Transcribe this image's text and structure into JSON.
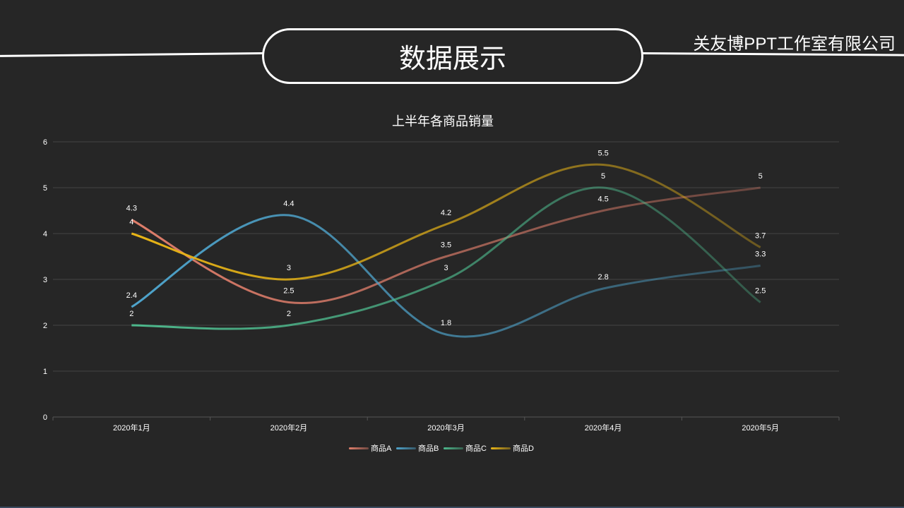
{
  "header": {
    "title": "数据展示",
    "company": "关友博PPT工作室有限公司"
  },
  "chart_data": {
    "type": "line",
    "title": "上半年各商品销量",
    "categories": [
      "2020年1月",
      "2020年2月",
      "2020年3月",
      "2020年4月",
      "2020年5月"
    ],
    "ylim": [
      0,
      6
    ],
    "yticks": [
      0,
      1,
      2,
      3,
      4,
      5,
      6
    ],
    "grid": true,
    "smooth": true,
    "legend_position": "bottom-center",
    "series": [
      {
        "name": "商品A",
        "color": "#e07e6b",
        "values": [
          4.3,
          2.5,
          3.5,
          4.5,
          5
        ]
      },
      {
        "name": "商品B",
        "color": "#4ea4cc",
        "values": [
          2.4,
          4.4,
          1.8,
          2.8,
          3.3
        ]
      },
      {
        "name": "商品C",
        "color": "#4db88c",
        "values": [
          2,
          2,
          3,
          5,
          2.5
        ]
      },
      {
        "name": "商品D",
        "color": "#e9b516",
        "values": [
          4,
          3,
          4.2,
          5.5,
          3.7
        ]
      }
    ]
  }
}
